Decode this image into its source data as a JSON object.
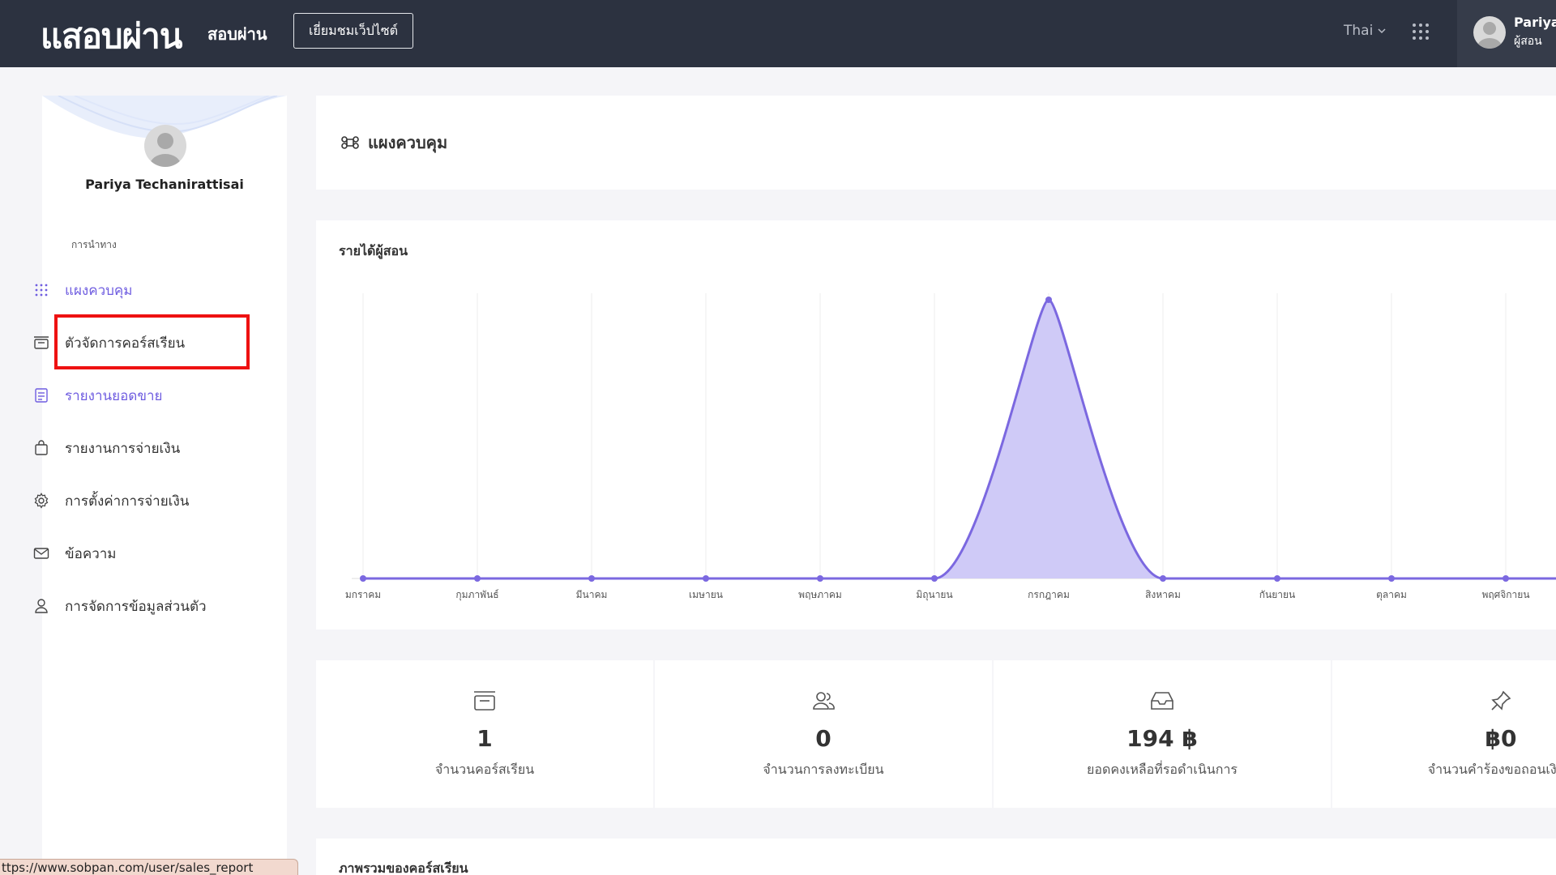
{
  "topbar": {
    "logo": "แสอบผ่าน",
    "brand": "สอบผ่าน",
    "visit_button": "เยี่ยมชมเว็ปไซต์",
    "language": "Thai",
    "user_name": "Pariya",
    "user_role": "ผู้สอน"
  },
  "sidebar": {
    "profile_name": "Pariya Techanirattisai",
    "nav_heading": "การนำทาง",
    "items": [
      {
        "label": "แผงควบคุม",
        "icon": "grid-icon"
      },
      {
        "label": "ตัวจัดการคอร์สเรียน",
        "icon": "course-box-icon"
      },
      {
        "label": "รายงานยอดขาย",
        "icon": "report-icon"
      },
      {
        "label": "รายงานการจ่ายเงิน",
        "icon": "bag-icon"
      },
      {
        "label": "การตั้งค่าการจ่ายเงิน",
        "icon": "gear-icon"
      },
      {
        "label": "ข้อความ",
        "icon": "mail-icon"
      },
      {
        "label": "การจัดการข้อมูลส่วนตัว",
        "icon": "user-icon"
      }
    ]
  },
  "main": {
    "page_title": "แผงควบคุม",
    "chart_title": "รายได้ผู้สอน",
    "overview_title": "ภาพรวมของคอร์สเรียน"
  },
  "chart_data": {
    "type": "area",
    "title": "รายได้ผู้สอน",
    "categories": [
      "มกราคม",
      "กุมภาพันธ์",
      "มีนาคม",
      "เมษายน",
      "พฤษภาคม",
      "มิถุนายน",
      "กรกฎาคม",
      "สิงหาคม",
      "กันยายน",
      "ตุลาคม",
      "พฤศจิกายน"
    ],
    "values": [
      0,
      0,
      0,
      0,
      0,
      0,
      194,
      0,
      0,
      0,
      0
    ],
    "color": "#7b68e0",
    "fill": "#cfcaf7",
    "grid": true
  },
  "stats": [
    {
      "value": "1",
      "label": "จำนวนคอร์สเรียน",
      "icon": "course-box-icon"
    },
    {
      "value": "0",
      "label": "จำนวนการลงทะเบียน",
      "icon": "users-icon"
    },
    {
      "value": "194 ฿",
      "label": "ยอดคงเหลือที่รอดำเนินการ",
      "icon": "inbox-icon"
    },
    {
      "value": "฿0",
      "label": "จำนวนคำร้องขอถอนเงินค",
      "icon": "pin-icon"
    }
  ],
  "status_url": "ttps://www.sobpan.com/user/sales_report"
}
